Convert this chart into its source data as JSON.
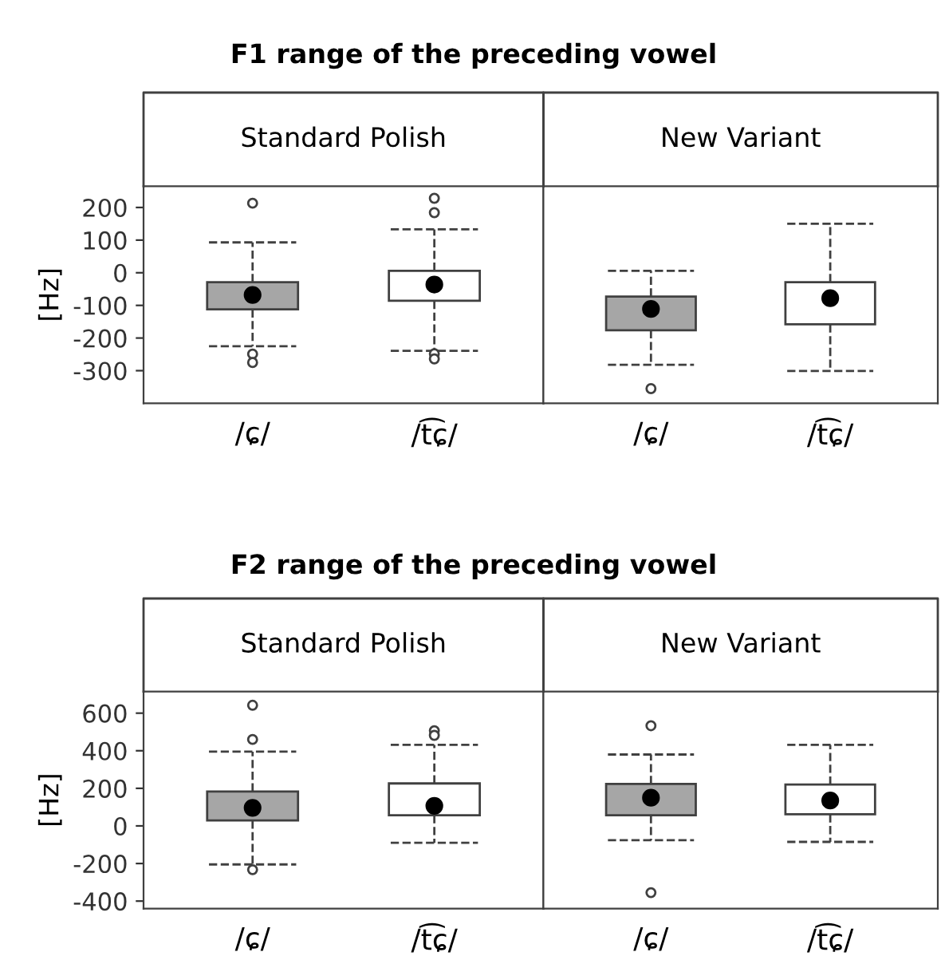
{
  "chart_data": [
    {
      "type": "box",
      "title": "F1 range of the preceding vowel",
      "subtitle": "Standard Polish",
      "ylabel": "[Hz]",
      "categories": [
        "/ɕ/",
        "/t͡ɕ/"
      ],
      "colors": [
        "#a6a6a6",
        "#ffffff"
      ],
      "ylim": [
        -400,
        265
      ],
      "yticks": [
        -300,
        -200,
        -100,
        0,
        100,
        200
      ],
      "boxes": [
        {
          "low": -225,
          "q1": -112,
          "median": -68,
          "q3": -29,
          "high": 93,
          "outliers": [
            213,
            -249,
            -275
          ]
        },
        {
          "low": -239,
          "q1": -86,
          "median": -36,
          "q3": 6,
          "high": 133,
          "outliers": [
            228,
            184,
            -248,
            -264
          ]
        }
      ]
    },
    {
      "type": "box",
      "subtitle": "New Variant",
      "categories": [
        "/ɕ/",
        "/t͡ɕ/"
      ],
      "colors": [
        "#a6a6a6",
        "#ffffff"
      ],
      "ylim": [
        -400,
        265
      ],
      "tick_labels": "x",
      "boxes": [
        {
          "low": -282,
          "q1": -176,
          "median": -111,
          "q3": -73,
          "high": 6,
          "outliers": [
            -355
          ]
        },
        {
          "low": -301,
          "q1": -158,
          "median": -78,
          "q3": -29,
          "high": 150
        }
      ]
    },
    {
      "type": "box",
      "title": "F2 range of the preceding vowel",
      "subtitle": "Standard Polish",
      "ylabel": "[Hz]",
      "categories": [
        "/ɕ/",
        "/t͡ɕ/"
      ],
      "colors": [
        "#a6a6a6",
        "#ffffff"
      ],
      "ylim": [
        -440,
        715
      ],
      "yticks": [
        -400,
        -200,
        0,
        200,
        400,
        600
      ],
      "boxes": [
        {
          "low": -205,
          "q1": 29,
          "median": 96,
          "q3": 183,
          "high": 395,
          "outliers": [
            642,
            460,
            -233
          ]
        },
        {
          "low": -90,
          "q1": 57,
          "median": 107,
          "q3": 226,
          "high": 431,
          "outliers": [
            507,
            482
          ]
        }
      ]
    },
    {
      "type": "box",
      "subtitle": "New Variant",
      "categories": [
        "/ɕ/",
        "/t͡ɕ/"
      ],
      "colors": [
        "#a6a6a6",
        "#ffffff"
      ],
      "ylim": [
        -440,
        715
      ],
      "tick_labels": "x",
      "boxes": [
        {
          "low": -76,
          "q1": 57,
          "median": 150,
          "q3": 223,
          "high": 380,
          "outliers": [
            533,
            -355
          ]
        },
        {
          "low": -85,
          "q1": 62,
          "median": 135,
          "q3": 220,
          "high": 431
        }
      ]
    }
  ]
}
